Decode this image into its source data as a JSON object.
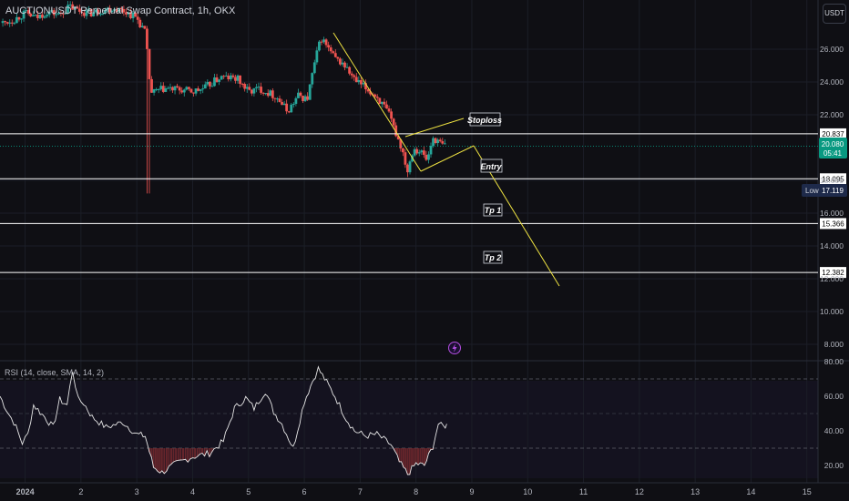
{
  "title": "AUCTIONUSDT Perpetual Swap Contract, 1h, OKX",
  "currency_button": "USDT",
  "rsi_title": "RSI (14, close, SMA, 14, 2)",
  "price_badges": {
    "current_price": "20.080",
    "countdown": "05:41",
    "low_label": "Low",
    "low_value": "17.119"
  },
  "colors": {
    "background": "#0f0f14",
    "up": "#26a69a",
    "down": "#ef5350",
    "pattern": "#f0e442",
    "rsi_line": "#e6e6e6",
    "level_line": "#ffffff"
  },
  "chart_data": [
    {
      "type": "candlestick",
      "title": "AUCTIONUSDT Perpetual Swap Contract, 1h, OKX",
      "y_ticks": [
        "26.000",
        "24.000",
        "22.000",
        "18.000",
        "16.000",
        "14.000",
        "12.000",
        "10.000",
        "8.000"
      ],
      "ylim": [
        7.0,
        29.0
      ],
      "x_ticks": [
        "2024",
        "2",
        "3",
        "4",
        "5",
        "6",
        "7",
        "8",
        "9",
        "10",
        "11",
        "12",
        "13",
        "14",
        "15"
      ],
      "x_tick_days": [
        1,
        2,
        3,
        4,
        5,
        6,
        7,
        8,
        9,
        10,
        11,
        12,
        13,
        14,
        15
      ],
      "xlim": [
        0.55,
        15.2
      ],
      "series": [
        {
          "points": [
            [
              0.6,
              27.6
            ],
            [
              0.8,
              27.8
            ],
            [
              1.0,
              28.2
            ],
            [
              1.2,
              27.9
            ],
            [
              1.4,
              28.3
            ],
            [
              1.6,
              28.1
            ],
            [
              1.8,
              28.6
            ],
            [
              2.0,
              28.3
            ],
            [
              2.2,
              28.2
            ],
            [
              2.4,
              28.4
            ],
            [
              2.6,
              28.5
            ],
            [
              2.8,
              28.3
            ],
            [
              3.0,
              27.9
            ],
            [
              3.15,
              27.0
            ],
            [
              3.25,
              23.3
            ],
            [
              3.5,
              23.6
            ],
            [
              3.8,
              23.5
            ],
            [
              4.0,
              23.4
            ],
            [
              4.2,
              23.6
            ],
            [
              4.5,
              24.3
            ],
            [
              4.8,
              24.2
            ],
            [
              5.0,
              23.4
            ],
            [
              5.2,
              23.6
            ],
            [
              5.5,
              23.1
            ],
            [
              5.7,
              22.2
            ],
            [
              5.9,
              23.2
            ],
            [
              6.05,
              22.9
            ],
            [
              6.2,
              25.4
            ],
            [
              6.3,
              26.7
            ],
            [
              6.4,
              26.2
            ],
            [
              6.55,
              25.4
            ],
            [
              6.7,
              25.1
            ],
            [
              6.9,
              24.1
            ],
            [
              7.1,
              23.6
            ],
            [
              7.3,
              23.1
            ],
            [
              7.5,
              22.1
            ],
            [
              7.65,
              20.8
            ],
            [
              7.75,
              19.9
            ],
            [
              7.85,
              18.6
            ],
            [
              7.95,
              20.0
            ],
            [
              8.1,
              19.7
            ],
            [
              8.2,
              19.2
            ],
            [
              8.3,
              20.6
            ],
            [
              8.45,
              20.2
            ],
            [
              8.55,
              20.08
            ]
          ]
        }
      ],
      "levels": [
        {
          "price": 20.837,
          "label": "20.837"
        },
        {
          "price": 18.095,
          "label": "18.095"
        },
        {
          "price": 15.366,
          "label": "15.366"
        },
        {
          "price": 12.382,
          "label": "12.382"
        }
      ],
      "annotations": [
        "Stoploss",
        "Entry",
        "Tp 1",
        "Tp 2"
      ]
    },
    {
      "type": "line",
      "title": "RSI (14, close, SMA, 14, 2)",
      "y_ticks": [
        "80.00",
        "60.00",
        "40.00",
        "20.00"
      ],
      "ylim": [
        10,
        80
      ],
      "bands": [
        70,
        50,
        30
      ],
      "series": [
        {
          "points": [
            [
              0.55,
              60
            ],
            [
              0.7,
              50
            ],
            [
              0.8,
              45
            ],
            [
              0.95,
              33
            ],
            [
              1.05,
              38
            ],
            [
              1.15,
              55
            ],
            [
              1.35,
              48
            ],
            [
              1.5,
              42
            ],
            [
              1.62,
              58
            ],
            [
              1.75,
              55
            ],
            [
              1.85,
              75
            ],
            [
              1.95,
              58
            ],
            [
              2.05,
              56
            ],
            [
              2.2,
              48
            ],
            [
              2.45,
              42
            ],
            [
              2.75,
              45
            ],
            [
              3.0,
              38
            ],
            [
              3.15,
              37
            ],
            [
              3.3,
              19
            ],
            [
              3.45,
              16
            ],
            [
              3.7,
              21
            ],
            [
              4.0,
              25
            ],
            [
              4.3,
              27
            ],
            [
              4.55,
              34
            ],
            [
              4.75,
              53
            ],
            [
              4.95,
              59
            ],
            [
              5.1,
              53
            ],
            [
              5.3,
              63
            ],
            [
              5.45,
              51
            ],
            [
              5.6,
              44
            ],
            [
              5.8,
              30
            ],
            [
              6.0,
              57
            ],
            [
              6.15,
              69
            ],
            [
              6.25,
              76
            ],
            [
              6.4,
              68
            ],
            [
              6.55,
              60
            ],
            [
              6.75,
              47
            ],
            [
              6.9,
              40
            ],
            [
              7.1,
              37
            ],
            [
              7.3,
              38
            ],
            [
              7.55,
              32
            ],
            [
              7.7,
              22
            ],
            [
              7.85,
              15
            ],
            [
              8.0,
              21
            ],
            [
              8.15,
              20
            ],
            [
              8.3,
              31
            ],
            [
              8.4,
              44
            ],
            [
              8.5,
              42
            ],
            [
              8.55,
              44
            ]
          ]
        }
      ]
    }
  ]
}
